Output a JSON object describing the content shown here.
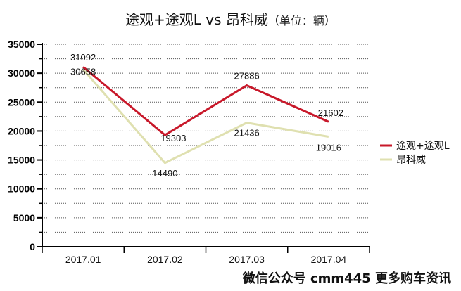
{
  "title": {
    "main": "途观+途观L vs 昂科威",
    "unit": "（单位：辆）"
  },
  "watermark": "微信公众号 cmm445 更多购车资讯",
  "colors": {
    "series1": "#c8182a",
    "series2": "#dfe0b0",
    "axis": "#000000",
    "grid": "#555555"
  },
  "chart_data": {
    "type": "line",
    "categories": [
      "2017.01",
      "2017.02",
      "2017.03",
      "2017.04"
    ],
    "series": [
      {
        "name": "途观+途观L",
        "values": [
          31092,
          19303,
          27886,
          21602
        ]
      },
      {
        "name": "昂科威",
        "values": [
          30658,
          14490,
          21436,
          19016
        ]
      }
    ],
    "y_ticks": [
      "0",
      "5000",
      "10000",
      "15000",
      "20000",
      "25000",
      "30000",
      "35000"
    ],
    "ylim": [
      0,
      35000
    ],
    "grid": "dotted horizontal",
    "legend_position": "right",
    "data_labels": true
  }
}
